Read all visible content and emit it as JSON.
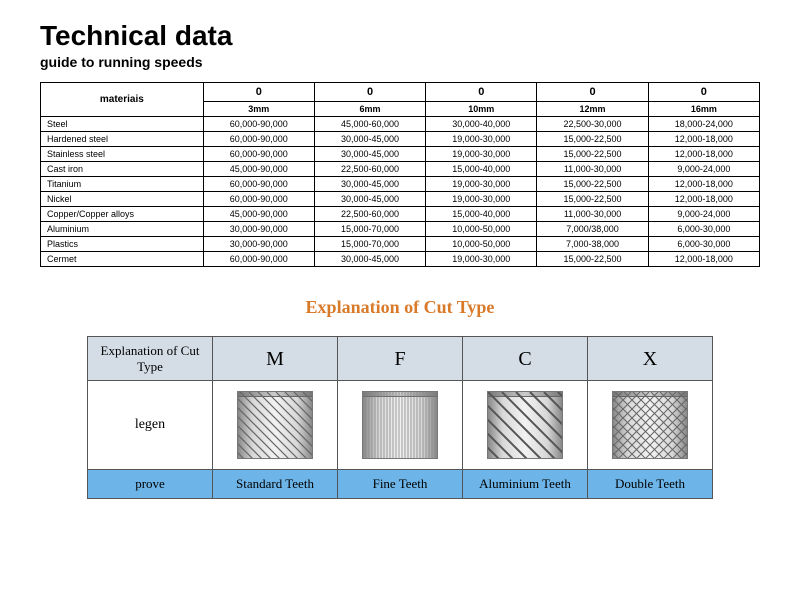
{
  "heading": {
    "title": "Technical data",
    "subtitle": "guide to running speeds"
  },
  "speed_table": {
    "materials_label": "materiais",
    "top_headers": [
      "0",
      "0",
      "0",
      "0",
      "0"
    ],
    "sub_headers": [
      "3mm",
      "6mm",
      "10mm",
      "12mm",
      "16mm"
    ],
    "rows": [
      {
        "material": "Steel",
        "v": [
          "60,000-90,000",
          "45,000-60,000",
          "30,000-40,000",
          "22,500-30,000",
          "18,000-24,000"
        ]
      },
      {
        "material": "Hardened steel",
        "v": [
          "60,000-90,000",
          "30,000-45,000",
          "19,000-30,000",
          "15,000-22,500",
          "12,000-18,000"
        ]
      },
      {
        "material": "Stainless steel",
        "v": [
          "60,000-90,000",
          "30,000-45,000",
          "19,000-30,000",
          "15,000-22,500",
          "12,000-18,000"
        ]
      },
      {
        "material": "Cast iron",
        "v": [
          "45,000-90,000",
          "22,500-60,000",
          "15,000-40,000",
          "11,000-30,000",
          "9,000-24,000"
        ]
      },
      {
        "material": "Titanium",
        "v": [
          "60,000-90,000",
          "30,000-45,000",
          "19,000-30,000",
          "15,000-22,500",
          "12,000-18,000"
        ]
      },
      {
        "material": "Nickel",
        "v": [
          "60,000-90,000",
          "30,000-45,000",
          "19,000-30,000",
          "15,000-22,500",
          "12,000-18,000"
        ]
      },
      {
        "material": "Copper/Copper alloys",
        "v": [
          "45,000-90,000",
          "22,500-60,000",
          "15,000-40,000",
          "11,000-30,000",
          "9,000-24,000"
        ]
      },
      {
        "material": "Aluminium",
        "v": [
          "30,000-90,000",
          "15,000-70,000",
          "10,000-50,000",
          "7,000/38,000",
          "6,000-30,000"
        ]
      },
      {
        "material": "Plastics",
        "v": [
          "30,000-90,000",
          "15,000-70,000",
          "10,000-50,000",
          "7,000-38,000",
          "6,000-30,000"
        ]
      },
      {
        "material": "Cermet",
        "v": [
          "60,000-90,000",
          "30,000-45,000",
          "19,000-30,000",
          "15,000-22,500",
          "12,000-18,000"
        ]
      }
    ]
  },
  "cut_type": {
    "section_title": "Explanation of Cut Type",
    "col_header": "Explanation of Cut Type",
    "legend_label": "legen",
    "prove_label": "prove",
    "types": [
      {
        "code": "M",
        "label": "Standard  Teeth",
        "pattern": "diag"
      },
      {
        "code": "F",
        "label": "Fine Teeth",
        "pattern": "fine"
      },
      {
        "code": "C",
        "label": "Aluminium Teeth",
        "pattern": "coarse"
      },
      {
        "code": "X",
        "label": "Double Teeth",
        "pattern": "cross"
      }
    ]
  },
  "colors": {
    "cut_header_bg": "#d4dde6",
    "cut_footer_bg": "#6db5e8",
    "explain_title": "#d97a2a"
  }
}
